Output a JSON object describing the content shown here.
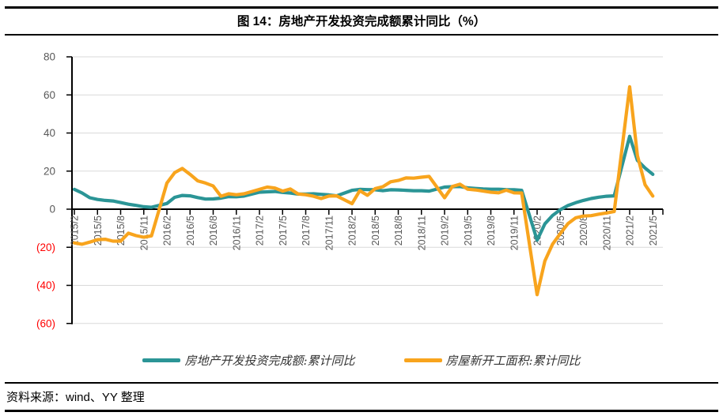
{
  "title": "图 14：房地产开发投资完成额累计同比（%）",
  "source_note": "资料来源：wind、YY 整理",
  "colors": {
    "series1": "#2B9596",
    "series2": "#F8A41D",
    "grid": "#D9D9D9",
    "axis": "#000000",
    "tick_label": "#595959",
    "negative_label": "#FF0000"
  },
  "chart_data": {
    "type": "line",
    "title": "图 14：房地产开发投资完成额累计同比（%）",
    "xlabel": "",
    "ylabel": "",
    "ylim": [
      -60,
      80
    ],
    "grid": "horizontal",
    "legend_position": "bottom",
    "x": [
      "2015/2",
      "2015/3",
      "2015/4",
      "2015/5",
      "2015/6",
      "2015/7",
      "2015/8",
      "2015/9",
      "2015/10",
      "2015/11",
      "2015/12",
      "2016/2",
      "2016/3",
      "2016/4",
      "2016/5",
      "2016/6",
      "2016/7",
      "2016/8",
      "2016/9",
      "2016/10",
      "2016/11",
      "2016/12",
      "2017/2",
      "2017/3",
      "2017/4",
      "2017/5",
      "2017/6",
      "2017/7",
      "2017/8",
      "2017/9",
      "2017/10",
      "2017/11",
      "2017/12",
      "2018/2",
      "2018/3",
      "2018/4",
      "2018/5",
      "2018/6",
      "2018/7",
      "2018/8",
      "2018/9",
      "2018/10",
      "2018/11",
      "2018/12",
      "2019/2",
      "2019/3",
      "2019/4",
      "2019/5",
      "2019/6",
      "2019/7",
      "2019/8",
      "2019/9",
      "2019/10",
      "2019/11",
      "2019/12",
      "2020/2",
      "2020/3",
      "2020/4",
      "2020/5",
      "2020/6",
      "2020/7",
      "2020/8",
      "2020/9",
      "2020/10",
      "2020/11",
      "2020/12",
      "2021/2",
      "2021/3",
      "2021/4",
      "2021/5"
    ],
    "x_tick_labels": [
      "2015/2",
      "2015/5",
      "2015/8",
      "2015/11",
      "2016/2",
      "2016/5",
      "2016/8",
      "2016/11",
      "2017/2",
      "2017/5",
      "2017/8",
      "2017/11",
      "2018/2",
      "2018/5",
      "2018/8",
      "2018/11",
      "2019/2",
      "2019/5",
      "2019/8",
      "2019/11",
      "2020/2",
      "2020/5",
      "2020/8",
      "2020/11",
      "2021/2",
      "2021/5"
    ],
    "y_ticks": [
      {
        "value": 80,
        "label": "80"
      },
      {
        "value": 60,
        "label": "60"
      },
      {
        "value": 40,
        "label": "40"
      },
      {
        "value": 20,
        "label": "20"
      },
      {
        "value": 0,
        "label": "0"
      },
      {
        "value": -20,
        "label": "(20)"
      },
      {
        "value": -40,
        "label": "(40)"
      },
      {
        "value": -60,
        "label": "(60)"
      }
    ],
    "series": [
      {
        "name": "房地产开发投资完成额:累计同比",
        "color": "#2B9596",
        "values": [
          10.4,
          8.5,
          6.0,
          5.1,
          4.6,
          4.3,
          3.5,
          2.6,
          2.0,
          1.3,
          1.0,
          3.0,
          6.2,
          7.2,
          7.0,
          6.1,
          5.3,
          5.4,
          5.8,
          6.6,
          6.5,
          6.9,
          8.9,
          9.1,
          9.3,
          8.8,
          8.5,
          7.9,
          7.9,
          8.1,
          7.8,
          7.5,
          7.0,
          9.9,
          10.4,
          10.3,
          10.2,
          9.7,
          10.2,
          10.1,
          9.9,
          9.7,
          9.7,
          9.5,
          11.6,
          11.8,
          11.9,
          11.2,
          10.9,
          10.6,
          10.5,
          10.5,
          10.3,
          10.2,
          9.9,
          -16.3,
          -7.7,
          -3.3,
          -0.3,
          1.9,
          3.4,
          4.6,
          5.6,
          6.3,
          6.8,
          7.0,
          38.3,
          25.6,
          21.6,
          18.3
        ]
      },
      {
        "name": "房屋新开工面积:累计同比",
        "color": "#F8A41D",
        "values": [
          -17.7,
          -18.4,
          -17.3,
          -16.0,
          -15.8,
          -16.8,
          -16.8,
          -12.6,
          -13.9,
          -14.7,
          -14.0,
          13.7,
          19.2,
          21.4,
          18.3,
          14.9,
          13.7,
          12.2,
          6.8,
          8.1,
          7.6,
          8.1,
          10.4,
          11.6,
          11.1,
          9.5,
          10.6,
          8.0,
          7.6,
          6.8,
          5.6,
          6.9,
          7.0,
          2.9,
          9.7,
          7.3,
          10.8,
          11.8,
          14.4,
          15.1,
          16.4,
          16.3,
          16.8,
          17.2,
          6.0,
          11.9,
          13.1,
          10.5,
          10.1,
          9.5,
          8.9,
          8.6,
          10.0,
          8.6,
          8.5,
          -44.9,
          -27.2,
          -18.4,
          -12.8,
          -7.6,
          -4.5,
          -3.6,
          -3.4,
          -2.6,
          -2.0,
          -1.2,
          64.3,
          28.2,
          12.8,
          6.9
        ]
      }
    ]
  }
}
